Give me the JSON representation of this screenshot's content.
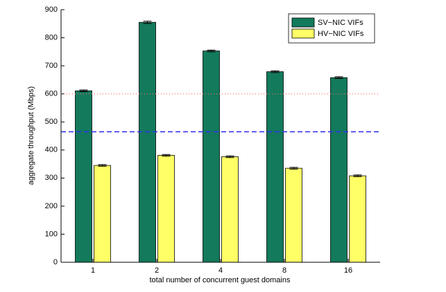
{
  "chart_data": {
    "type": "bar",
    "xlabel": "total number of concurrent guest domains",
    "ylabel": "aggregate throughput (Mbps)",
    "categories": [
      "1",
      "2",
      "4",
      "8",
      "16"
    ],
    "series": [
      {
        "name": "SV−NIC VIFs",
        "color": "#137a5c",
        "values": [
          611,
          855,
          753,
          679,
          658
        ],
        "errors": [
          3,
          4,
          3,
          3,
          3
        ]
      },
      {
        "name": "HV−NIC VIFs",
        "color": "#ffff66",
        "values": [
          345,
          381,
          376,
          335,
          308
        ],
        "errors": [
          3,
          3,
          3,
          3,
          3
        ]
      }
    ],
    "reference_lines": [
      {
        "value": 600,
        "color": "#ff6666",
        "style": "dotted"
      },
      {
        "value": 465,
        "color": "#3333ee",
        "style": "dashed"
      }
    ],
    "ylim": [
      0,
      900
    ],
    "yticks": [
      0,
      100,
      200,
      300,
      400,
      500,
      600,
      700,
      800,
      900
    ],
    "legend": "northeast"
  }
}
